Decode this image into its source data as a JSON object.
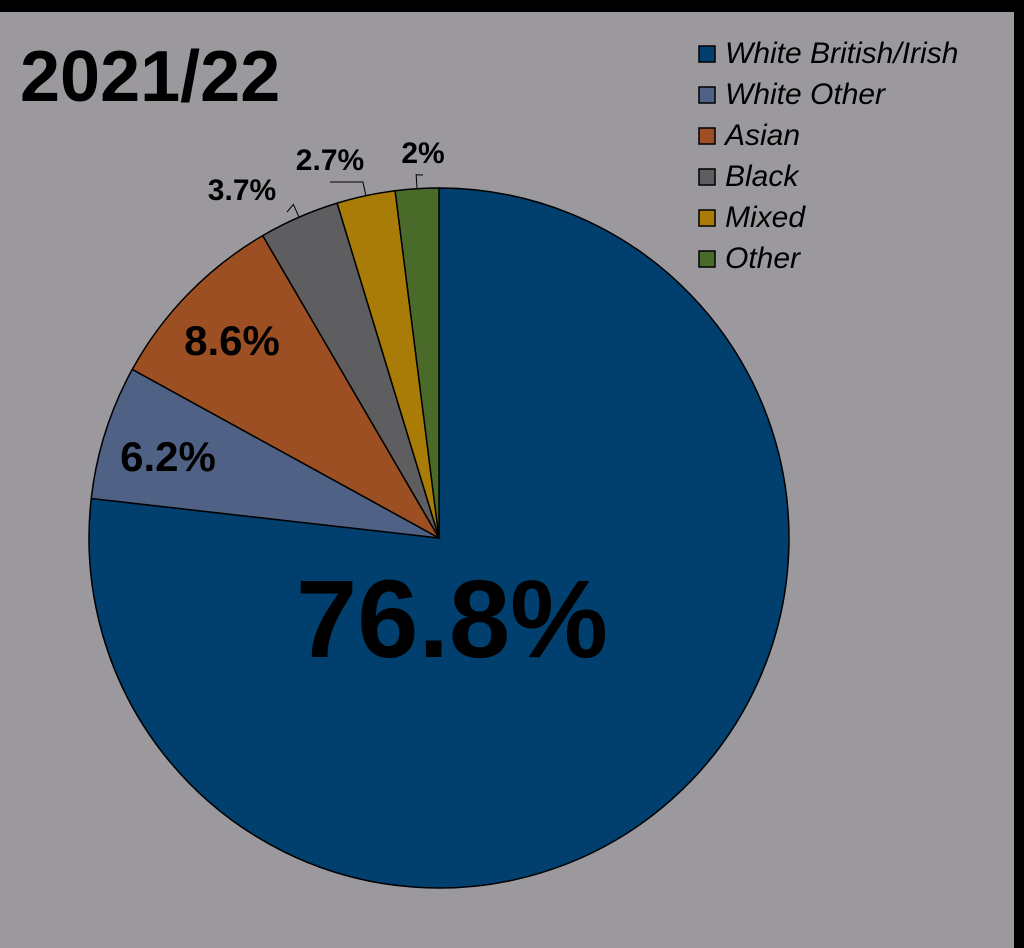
{
  "chart_data": {
    "type": "pie",
    "title": "2021/22",
    "categories": [
      "White British/Irish",
      "White Other",
      "Asian",
      "Black",
      "Mixed",
      "Other"
    ],
    "values": [
      76.8,
      6.2,
      8.6,
      3.7,
      2.7,
      2
    ],
    "value_labels": [
      "76.8%",
      "6.2%",
      "8.6%",
      "3.7%",
      "2.7%",
      "2%"
    ],
    "colors": [
      "#003f6e",
      "#4f6184",
      "#9b4f22",
      "#5e5e60",
      "#a87c06",
      "#4a6a2a"
    ],
    "legend": "top-right"
  }
}
